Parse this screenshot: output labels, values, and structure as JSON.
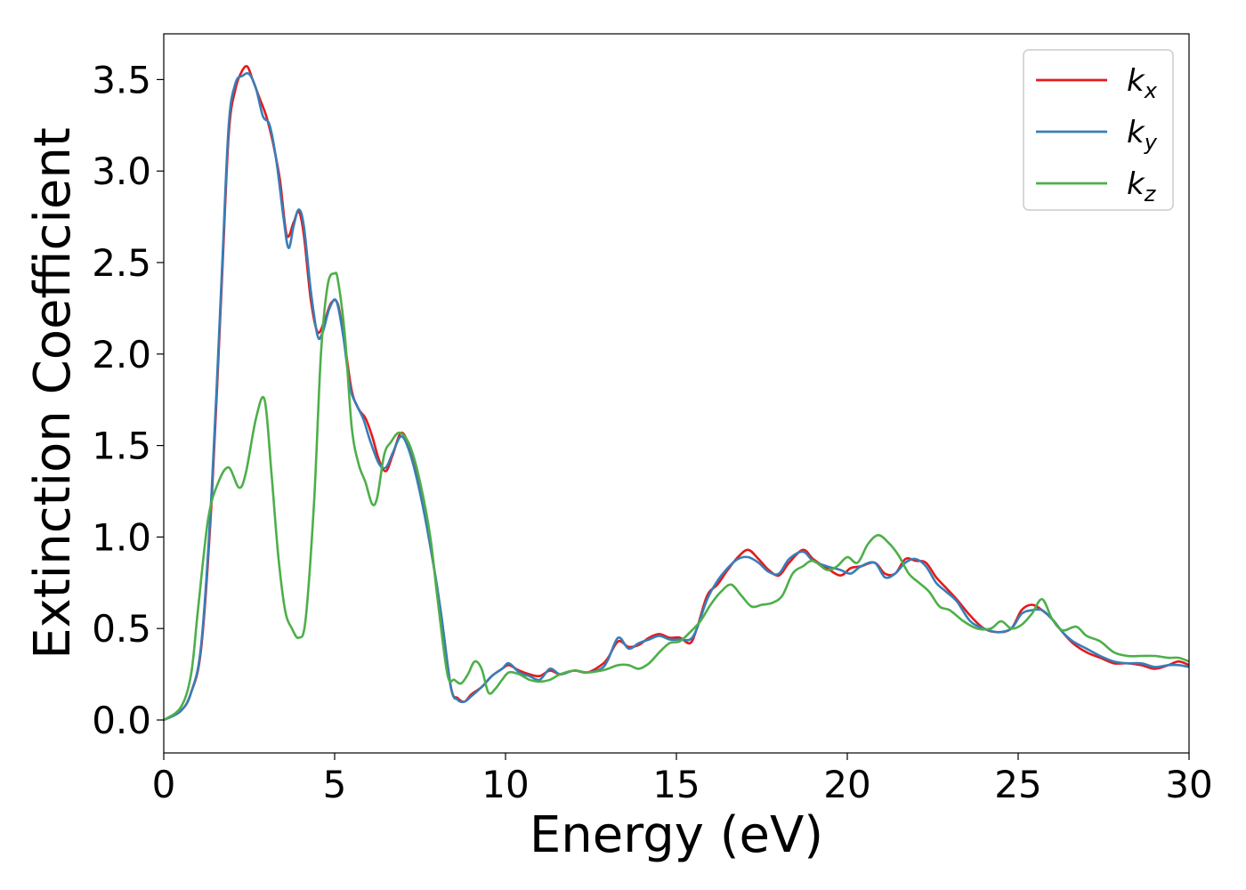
{
  "chart_data": {
    "type": "line",
    "title": "",
    "xlabel": "Energy (eV)",
    "ylabel": "Extinction Coefficient",
    "xlim": [
      0,
      30
    ],
    "ylim": [
      -0.18,
      3.75
    ],
    "xticks": [
      0,
      5,
      10,
      15,
      20,
      25,
      30
    ],
    "yticks": [
      0.0,
      0.5,
      1.0,
      1.5,
      2.0,
      2.5,
      3.0,
      3.5
    ],
    "xtick_labels": [
      "0",
      "5",
      "10",
      "15",
      "20",
      "25",
      "30"
    ],
    "ytick_labels": [
      "0.0",
      "0.5",
      "1.0",
      "1.5",
      "2.0",
      "2.5",
      "3.0",
      "3.5"
    ],
    "grid": false,
    "legend": "top-right",
    "series": [
      {
        "name": "k_x",
        "label_base": "k",
        "label_sub": "x",
        "color": "#e41a1c",
        "x": [
          0,
          0.5,
          0.8,
          1.1,
          1.4,
          1.7,
          1.9,
          2.1,
          2.3,
          2.45,
          2.6,
          2.8,
          3.0,
          3.2,
          3.4,
          3.6,
          3.8,
          3.95,
          4.1,
          4.3,
          4.5,
          4.7,
          4.9,
          5.1,
          5.3,
          5.5,
          5.7,
          5.9,
          6.1,
          6.3,
          6.5,
          6.7,
          6.95,
          7.2,
          7.5,
          7.8,
          8.1,
          8.4,
          8.6,
          8.8,
          9.0,
          9.3,
          9.6,
          9.9,
          10.1,
          10.4,
          10.7,
          11.0,
          11.3,
          11.6,
          12.0,
          12.4,
          12.8,
          13.0,
          13.3,
          13.6,
          13.9,
          14.2,
          14.5,
          14.8,
          15.1,
          15.4,
          15.6,
          15.9,
          16.2,
          16.5,
          16.8,
          17.1,
          17.4,
          17.7,
          18.0,
          18.3,
          18.7,
          19.0,
          19.4,
          19.8,
          20.1,
          20.4,
          20.8,
          21.1,
          21.4,
          21.7,
          22.0,
          22.3,
          22.6,
          22.9,
          23.2,
          23.6,
          24.0,
          24.4,
          24.8,
          25.1,
          25.4,
          25.7,
          26.0,
          26.3,
          26.6,
          27.0,
          27.4,
          27.8,
          28.2,
          28.6,
          29.0,
          29.4,
          29.7,
          30.0
        ],
        "y": [
          0,
          0.05,
          0.15,
          0.4,
          1.2,
          2.4,
          3.2,
          3.45,
          3.55,
          3.57,
          3.5,
          3.4,
          3.3,
          3.15,
          2.95,
          2.65,
          2.72,
          2.78,
          2.65,
          2.3,
          2.12,
          2.18,
          2.28,
          2.27,
          2.05,
          1.8,
          1.7,
          1.65,
          1.55,
          1.42,
          1.36,
          1.45,
          1.57,
          1.48,
          1.25,
          0.95,
          0.6,
          0.18,
          0.12,
          0.1,
          0.14,
          0.18,
          0.24,
          0.28,
          0.3,
          0.27,
          0.25,
          0.24,
          0.27,
          0.25,
          0.27,
          0.26,
          0.3,
          0.34,
          0.43,
          0.4,
          0.41,
          0.45,
          0.47,
          0.45,
          0.45,
          0.42,
          0.5,
          0.68,
          0.74,
          0.82,
          0.89,
          0.93,
          0.88,
          0.82,
          0.79,
          0.86,
          0.93,
          0.88,
          0.83,
          0.79,
          0.83,
          0.84,
          0.86,
          0.8,
          0.8,
          0.88,
          0.87,
          0.86,
          0.78,
          0.72,
          0.66,
          0.57,
          0.5,
          0.48,
          0.5,
          0.6,
          0.63,
          0.6,
          0.55,
          0.48,
          0.42,
          0.37,
          0.34,
          0.31,
          0.31,
          0.3,
          0.28,
          0.3,
          0.32,
          0.3
        ]
      },
      {
        "name": "k_y",
        "label_base": "k",
        "label_sub": "y",
        "color": "#377eb8",
        "x": [
          0,
          0.5,
          0.8,
          1.1,
          1.4,
          1.7,
          1.9,
          2.1,
          2.3,
          2.5,
          2.7,
          2.9,
          3.1,
          3.3,
          3.5,
          3.65,
          3.8,
          3.95,
          4.1,
          4.3,
          4.5,
          4.65,
          4.85,
          5.05,
          5.25,
          5.45,
          5.65,
          5.85,
          6.05,
          6.3,
          6.5,
          6.7,
          6.95,
          7.2,
          7.5,
          7.8,
          8.1,
          8.4,
          8.6,
          8.8,
          9.0,
          9.3,
          9.6,
          9.9,
          10.1,
          10.4,
          10.7,
          11.0,
          11.3,
          11.6,
          12.0,
          12.4,
          12.8,
          13.0,
          13.3,
          13.6,
          13.9,
          14.2,
          14.5,
          14.8,
          15.1,
          15.4,
          15.6,
          15.9,
          16.2,
          16.5,
          16.8,
          17.1,
          17.4,
          17.7,
          18.0,
          18.3,
          18.7,
          19.0,
          19.4,
          19.8,
          20.1,
          20.4,
          20.8,
          21.1,
          21.4,
          21.7,
          22.0,
          22.3,
          22.6,
          22.9,
          23.2,
          23.6,
          24.0,
          24.4,
          24.8,
          25.1,
          25.4,
          25.7,
          26.0,
          26.3,
          26.6,
          27.0,
          27.4,
          27.8,
          28.2,
          28.6,
          29.0,
          29.4,
          29.7,
          30.0
        ],
        "y": [
          0,
          0.05,
          0.15,
          0.42,
          1.25,
          2.45,
          3.25,
          3.48,
          3.52,
          3.53,
          3.45,
          3.3,
          3.25,
          3.05,
          2.75,
          2.58,
          2.7,
          2.79,
          2.7,
          2.35,
          2.1,
          2.12,
          2.25,
          2.29,
          2.1,
          1.82,
          1.72,
          1.64,
          1.52,
          1.4,
          1.38,
          1.46,
          1.55,
          1.46,
          1.24,
          0.95,
          0.6,
          0.18,
          0.11,
          0.1,
          0.13,
          0.18,
          0.24,
          0.28,
          0.31,
          0.26,
          0.24,
          0.22,
          0.28,
          0.25,
          0.27,
          0.26,
          0.28,
          0.33,
          0.45,
          0.39,
          0.42,
          0.44,
          0.46,
          0.44,
          0.44,
          0.44,
          0.5,
          0.66,
          0.76,
          0.83,
          0.88,
          0.89,
          0.86,
          0.81,
          0.8,
          0.88,
          0.92,
          0.87,
          0.84,
          0.82,
          0.8,
          0.84,
          0.86,
          0.78,
          0.8,
          0.86,
          0.88,
          0.84,
          0.75,
          0.7,
          0.65,
          0.54,
          0.5,
          0.48,
          0.5,
          0.58,
          0.6,
          0.6,
          0.55,
          0.48,
          0.43,
          0.39,
          0.35,
          0.32,
          0.31,
          0.31,
          0.29,
          0.3,
          0.3,
          0.29
        ]
      },
      {
        "name": "k_z",
        "label_base": "k",
        "label_sub": "z",
        "color": "#4daf4a",
        "x": [
          0,
          0.5,
          0.8,
          1.0,
          1.3,
          1.6,
          1.9,
          2.2,
          2.4,
          2.7,
          2.95,
          3.15,
          3.35,
          3.55,
          3.75,
          3.95,
          4.15,
          4.4,
          4.6,
          4.8,
          5.0,
          5.1,
          5.3,
          5.5,
          5.7,
          5.9,
          6.1,
          6.25,
          6.45,
          6.65,
          6.9,
          7.2,
          7.5,
          7.8,
          8.0,
          8.3,
          8.5,
          8.7,
          8.9,
          9.1,
          9.3,
          9.5,
          9.7,
          9.9,
          10.1,
          10.4,
          10.7,
          11.0,
          11.3,
          11.6,
          12.0,
          12.4,
          12.8,
          13.0,
          13.3,
          13.6,
          13.9,
          14.2,
          14.5,
          14.8,
          15.1,
          15.4,
          15.7,
          16.0,
          16.3,
          16.6,
          16.9,
          17.2,
          17.5,
          17.8,
          18.1,
          18.4,
          18.7,
          19.0,
          19.4,
          19.7,
          20.0,
          20.3,
          20.6,
          20.9,
          21.2,
          21.5,
          21.8,
          22.1,
          22.4,
          22.7,
          23.0,
          23.4,
          23.8,
          24.2,
          24.5,
          24.8,
          25.1,
          25.4,
          25.7,
          26.0,
          26.3,
          26.7,
          27.0,
          27.4,
          27.8,
          28.2,
          28.6,
          29.0,
          29.4,
          29.7,
          30.0
        ],
        "y": [
          0,
          0.07,
          0.25,
          0.6,
          1.1,
          1.3,
          1.38,
          1.27,
          1.35,
          1.65,
          1.75,
          1.35,
          0.9,
          0.6,
          0.5,
          0.45,
          0.55,
          1.2,
          2.0,
          2.38,
          2.44,
          2.4,
          2.1,
          1.6,
          1.4,
          1.3,
          1.18,
          1.22,
          1.45,
          1.52,
          1.57,
          1.5,
          1.3,
          1.0,
          0.68,
          0.25,
          0.22,
          0.2,
          0.25,
          0.32,
          0.28,
          0.15,
          0.17,
          0.22,
          0.26,
          0.25,
          0.22,
          0.21,
          0.22,
          0.25,
          0.27,
          0.26,
          0.27,
          0.28,
          0.3,
          0.3,
          0.28,
          0.31,
          0.37,
          0.42,
          0.43,
          0.48,
          0.54,
          0.63,
          0.7,
          0.74,
          0.68,
          0.62,
          0.63,
          0.64,
          0.68,
          0.8,
          0.84,
          0.87,
          0.82,
          0.84,
          0.89,
          0.86,
          0.96,
          1.01,
          0.97,
          0.9,
          0.8,
          0.75,
          0.7,
          0.62,
          0.6,
          0.54,
          0.5,
          0.5,
          0.54,
          0.5,
          0.52,
          0.58,
          0.66,
          0.55,
          0.49,
          0.51,
          0.46,
          0.43,
          0.37,
          0.35,
          0.35,
          0.35,
          0.34,
          0.34,
          0.32
        ]
      }
    ]
  }
}
